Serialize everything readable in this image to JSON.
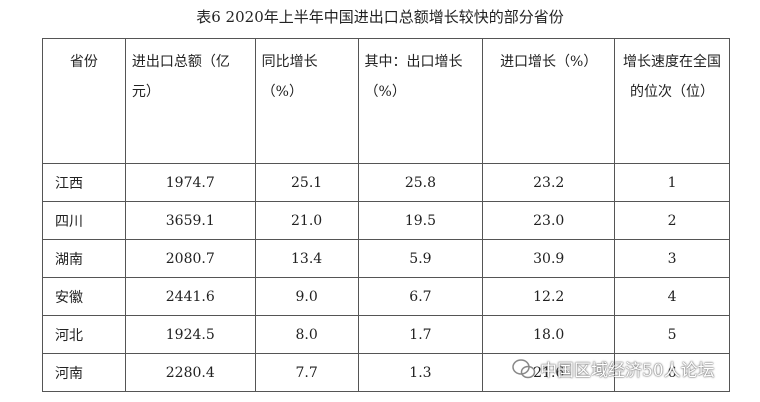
{
  "title": "表6 2020年上半年中国进出口总额增长较快的部分省份",
  "table": {
    "header": [
      "省份",
      "进出口总额（亿元）",
      "同比增长（%）",
      "其中：出口增长（%）",
      "进口增长（%）",
      "增长速度在全国的位次（位）"
    ],
    "rows": [
      [
        "江西",
        "1974.7",
        "25.1",
        "25.8",
        "23.2",
        "1"
      ],
      [
        "四川",
        "3659.1",
        "21.0",
        "19.5",
        "23.0",
        "2"
      ],
      [
        "湖南",
        "2080.7",
        "13.4",
        "5.9",
        "30.9",
        "3"
      ],
      [
        "安徽",
        "2441.6",
        "9.0",
        "6.7",
        "12.2",
        "4"
      ],
      [
        "河北",
        "1924.5",
        "8.0",
        "1.7",
        "18.0",
        "5"
      ],
      [
        "河南",
        "2280.4",
        "7.7",
        "1.3",
        "21.6",
        "6"
      ]
    ]
  },
  "watermark": "中国区域经济50人论坛"
}
